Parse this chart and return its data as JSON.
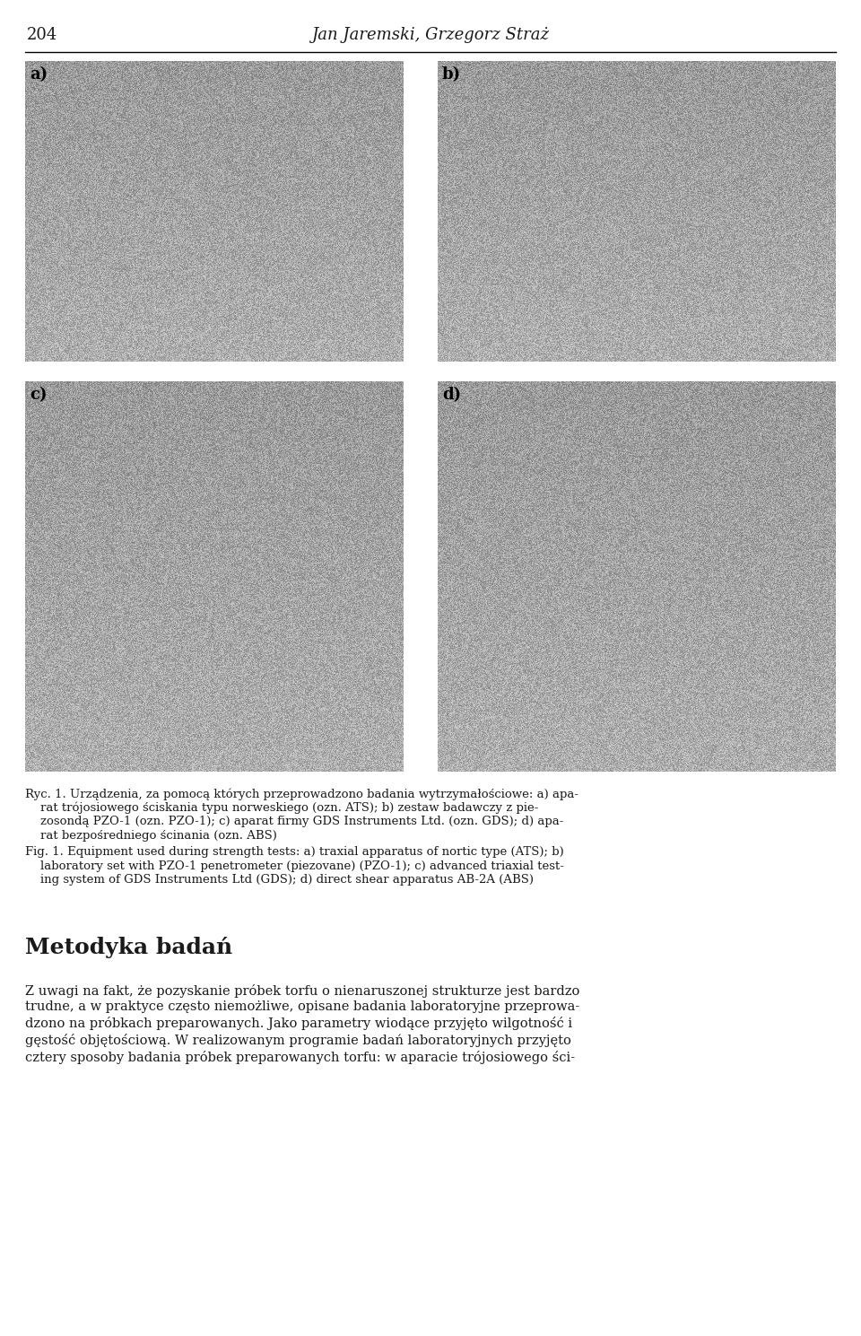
{
  "page_width": 9.6,
  "page_height": 14.89,
  "dpi": 100,
  "bg_color": "#ffffff",
  "header_text": "Jan Jaremski, Grzegorz Straż",
  "header_page_num": "204",
  "header_font_size": 13,
  "photo_labels": [
    "a)",
    "b)",
    "c)",
    "d)"
  ],
  "photo_label_fontsize": 13,
  "caption_polish_lines": [
    "Ryc. 1. Urządzenia, za pomocą których przeprowadzono badania wytrzymałościowe: a) apa-",
    "    rat trójosiowego ściskania typu norweskiego (ozn. ATS); b) zestaw badawczy z pie-",
    "    zosondą PZO-1 (ozn. PZO-1); c) aparat firmy GDS Instruments Ltd. (ozn. GDS); d) apa-",
    "    rat bezpośredniego ścinania (ozn. ABS)"
  ],
  "caption_english_lines": [
    "Fig. 1. Equipment used during strength tests: a) traxial apparatus of nortic type (ATS); b)",
    "    laboratory set with PZO-1 penetrometer (piezovane) (PZO-1); c) advanced triaxial test-",
    "    ing system of GDS Instruments Ltd (GDS); d) direct shear apparatus AB-2A (ABS)"
  ],
  "caption_fontsize": 9.5,
  "section_title": "Metodyka badań",
  "section_title_fontsize": 18,
  "body_text_lines": [
    "Z uwagi na fakt, że pozyskanie próbek torfu o nienaruszonej strukturze jest bardzo",
    "trudne, a w praktyce często niemożliwe, opisane badania laboratoryjne przeprowa-",
    "dzono na próbkach preparowanych. Jako parametry wiodące przyjęto wilgotność i",
    "gęstość objętościową. W realizowanym programie badań laboratoryjnych przyjęto",
    "cztery sposoby badania próbek preparowanych torfu: w aparacie trójosiowego ści-"
  ],
  "body_fontsize": 10.5,
  "text_color": "#1a1a1a"
}
